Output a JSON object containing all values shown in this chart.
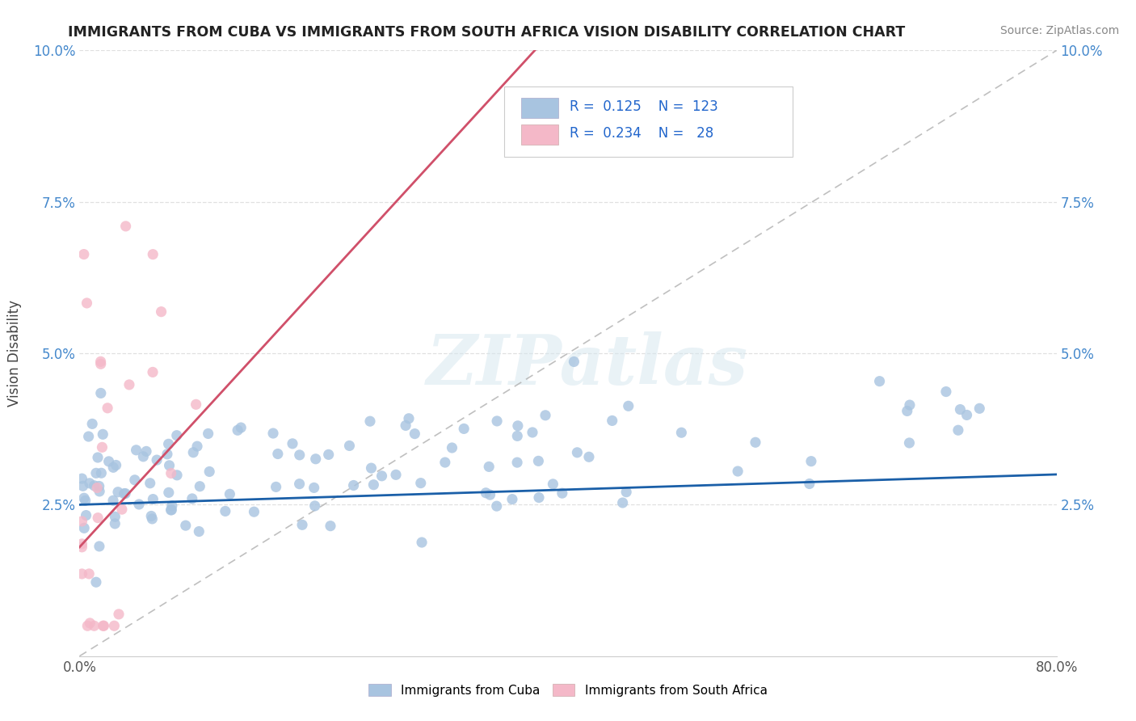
{
  "title": "IMMIGRANTS FROM CUBA VS IMMIGRANTS FROM SOUTH AFRICA VISION DISABILITY CORRELATION CHART",
  "source": "Source: ZipAtlas.com",
  "ylabel": "Vision Disability",
  "xlim": [
    0,
    0.8
  ],
  "ylim": [
    0,
    0.1
  ],
  "xticks": [
    0.0,
    0.2,
    0.4,
    0.6,
    0.8
  ],
  "yticks": [
    0.0,
    0.025,
    0.05,
    0.075,
    0.1
  ],
  "xticklabels_bottom": [
    "0.0%",
    "",
    "",
    "",
    "80.0%"
  ],
  "yticklabels": [
    "",
    "2.5%",
    "5.0%",
    "7.5%",
    "10.0%"
  ],
  "cuba_color": "#a8c4e0",
  "sa_color": "#f4b8c8",
  "cuba_line_color": "#1a5fa8",
  "sa_line_color": "#d0506a",
  "legend_text_color": "#2266cc",
  "watermark": "ZIPatlas",
  "R_cuba": 0.125,
  "N_cuba": 123,
  "R_sa": 0.234,
  "N_sa": 28,
  "cuba_seed": 42,
  "sa_seed": 7,
  "background_color": "#ffffff",
  "grid_color": "#dddddd",
  "tick_label_color_y": "#4488cc",
  "tick_label_color_x": "#555555"
}
